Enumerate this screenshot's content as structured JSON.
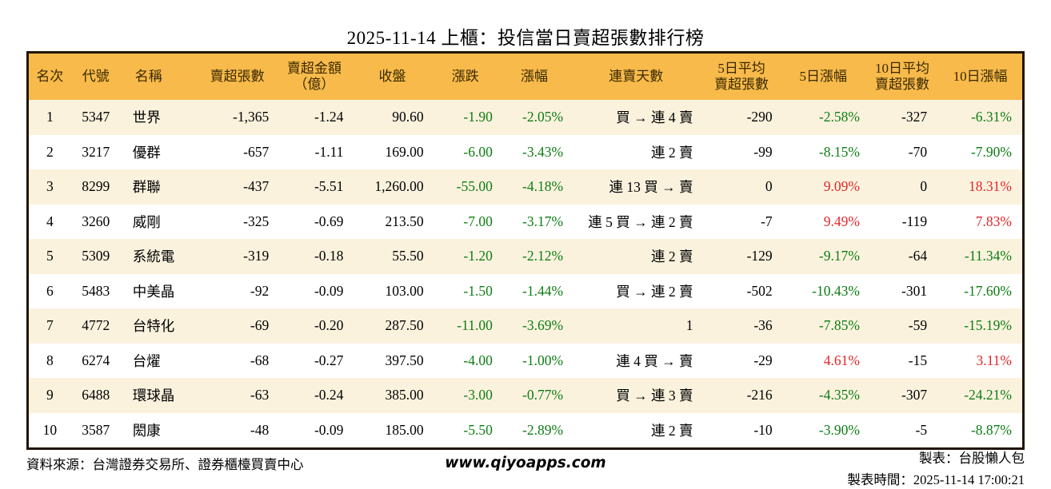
{
  "title": "2025-11-14 上櫃：投信當日賣超張數排行榜",
  "colors": {
    "header_bg": "#f7ba4b",
    "header_text": "#3a2800",
    "table_border": "#1f1400",
    "row_stripe": "#fbf2de",
    "down_green": "#0d7d12",
    "up_red": "#e3262a"
  },
  "table": {
    "columns": [
      {
        "key": "rank",
        "label": "名次",
        "width": 54
      },
      {
        "key": "code",
        "label": "代號",
        "width": 62
      },
      {
        "key": "name",
        "label": "名稱",
        "width": 98
      },
      {
        "key": "sell_shares",
        "label": "賣超張數",
        "width": 95
      },
      {
        "key": "sell_amount",
        "label": "賣超金額\n（億）",
        "width": 97
      },
      {
        "key": "close",
        "label": "收盤",
        "width": 98
      },
      {
        "key": "change",
        "label": "漲跌",
        "width": 84
      },
      {
        "key": "change_pct",
        "label": "漲幅",
        "width": 88
      },
      {
        "key": "streak",
        "label": "連賣天數",
        "width": 166
      },
      {
        "key": "avg5",
        "label": "5日平均\n賣超張數",
        "width": 97
      },
      {
        "key": "pct5",
        "label": "5日漲幅",
        "width": 107
      },
      {
        "key": "avg10",
        "label": "10日平均\n賣超張數",
        "width": 90
      },
      {
        "key": "pct10",
        "label": "10日漲幅",
        "width": 106
      }
    ],
    "signed_color_columns": [
      "change",
      "change_pct",
      "pct5",
      "pct10"
    ],
    "rows": [
      {
        "rank": "1",
        "code": "5347",
        "name": "世界",
        "sell_shares": "-1,365",
        "sell_amount": "-1.24",
        "close": "90.60",
        "change": "-1.90",
        "change_pct": "-2.05%",
        "streak": "買 → 連 4 賣",
        "avg5": "-290",
        "pct5": "-2.58%",
        "avg10": "-327",
        "pct10": "-6.31%"
      },
      {
        "rank": "2",
        "code": "3217",
        "name": "優群",
        "sell_shares": "-657",
        "sell_amount": "-1.11",
        "close": "169.00",
        "change": "-6.00",
        "change_pct": "-3.43%",
        "streak": "連 2 賣",
        "avg5": "-99",
        "pct5": "-8.15%",
        "avg10": "-70",
        "pct10": "-7.90%"
      },
      {
        "rank": "3",
        "code": "8299",
        "name": "群聯",
        "sell_shares": "-437",
        "sell_amount": "-5.51",
        "close": "1,260.00",
        "change": "-55.00",
        "change_pct": "-4.18%",
        "streak": "連 13 買 → 賣",
        "avg5": "0",
        "pct5": "9.09%",
        "avg10": "0",
        "pct10": "18.31%"
      },
      {
        "rank": "4",
        "code": "3260",
        "name": "威剛",
        "sell_shares": "-325",
        "sell_amount": "-0.69",
        "close": "213.50",
        "change": "-7.00",
        "change_pct": "-3.17%",
        "streak": "連 5 買 → 連 2 賣",
        "avg5": "-7",
        "pct5": "9.49%",
        "avg10": "-119",
        "pct10": "7.83%"
      },
      {
        "rank": "5",
        "code": "5309",
        "name": "系統電",
        "sell_shares": "-319",
        "sell_amount": "-0.18",
        "close": "55.50",
        "change": "-1.20",
        "change_pct": "-2.12%",
        "streak": "連 2 賣",
        "avg5": "-129",
        "pct5": "-9.17%",
        "avg10": "-64",
        "pct10": "-11.34%"
      },
      {
        "rank": "6",
        "code": "5483",
        "name": "中美晶",
        "sell_shares": "-92",
        "sell_amount": "-0.09",
        "close": "103.00",
        "change": "-1.50",
        "change_pct": "-1.44%",
        "streak": "買 → 連 2 賣",
        "avg5": "-502",
        "pct5": "-10.43%",
        "avg10": "-301",
        "pct10": "-17.60%"
      },
      {
        "rank": "7",
        "code": "4772",
        "name": "台特化",
        "sell_shares": "-69",
        "sell_amount": "-0.20",
        "close": "287.50",
        "change": "-11.00",
        "change_pct": "-3.69%",
        "streak": "1",
        "avg5": "-36",
        "pct5": "-7.85%",
        "avg10": "-59",
        "pct10": "-15.19%"
      },
      {
        "rank": "8",
        "code": "6274",
        "name": "台燿",
        "sell_shares": "-68",
        "sell_amount": "-0.27",
        "close": "397.50",
        "change": "-4.00",
        "change_pct": "-1.00%",
        "streak": "連 4 買 → 賣",
        "avg5": "-29",
        "pct5": "4.61%",
        "avg10": "-15",
        "pct10": "3.11%"
      },
      {
        "rank": "9",
        "code": "6488",
        "name": "環球晶",
        "sell_shares": "-63",
        "sell_amount": "-0.24",
        "close": "385.00",
        "change": "-3.00",
        "change_pct": "-0.77%",
        "streak": "買 → 連 3 賣",
        "avg5": "-216",
        "pct5": "-4.35%",
        "avg10": "-307",
        "pct10": "-24.21%"
      },
      {
        "rank": "10",
        "code": "3587",
        "name": "閎康",
        "sell_shares": "-48",
        "sell_amount": "-0.09",
        "close": "185.00",
        "change": "-5.50",
        "change_pct": "-2.89%",
        "streak": "連 2 賣",
        "avg5": "-10",
        "pct5": "-3.90%",
        "avg10": "-5",
        "pct10": "-8.87%"
      }
    ]
  },
  "footer": {
    "source": "資料來源：台灣證券交易所、證券櫃檯買賣中心",
    "website": "www.qiyoapps.com",
    "maker": "製表：台股懶人包",
    "made_time": "製表時間：2025-11-14 17:00:21"
  }
}
